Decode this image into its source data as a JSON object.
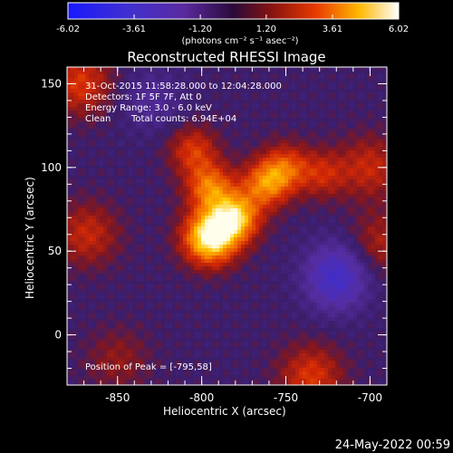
{
  "chart_data": {
    "type": "heatmap",
    "title": "Reconstructed RHESSI Image",
    "xlabel": "Heliocentric X (arcsec)",
    "ylabel": "Heliocentric Y (arcsec)",
    "xlim": [
      -880,
      -690
    ],
    "ylim": [
      -30,
      160
    ],
    "x_ticks": [
      "-850",
      "-800",
      "-750",
      "-700"
    ],
    "x_tick_values": [
      -850,
      -800,
      -750,
      -700
    ],
    "y_ticks": [
      "0",
      "50",
      "100",
      "150"
    ],
    "y_tick_values": [
      0,
      50,
      100,
      150
    ],
    "colorbar": {
      "min": -6.02,
      "max": 6.02,
      "tick_labels": [
        "-6.02",
        "-3.61",
        "-1.20",
        "1.20",
        "3.61",
        "6.02"
      ],
      "unit_label": "(photons cm⁻² s⁻¹ asec⁻²)"
    },
    "annotations": {
      "time_range": "31-Oct-2015 11:58:28.000 to 12:04:28.000",
      "detectors": "Detectors: 1F 5F 7F, Att 0",
      "energy": "Energy Range: 3.0 - 6.0 keV",
      "clean": "Clean",
      "counts": "Total counts: 6.94E+04",
      "peak": "Position of Peak = [-795,58]"
    },
    "sources": [
      {
        "x": -795,
        "y": 58,
        "value": 6.02
      },
      {
        "x": -780,
        "y": 70,
        "value": 4.6
      },
      {
        "x": -795,
        "y": 88,
        "value": 3.5
      },
      {
        "x": -762,
        "y": 90,
        "value": 3.4
      },
      {
        "x": -750,
        "y": 100,
        "value": 2.6
      },
      {
        "x": -805,
        "y": 110,
        "value": 2.4
      },
      {
        "x": -728,
        "y": 96,
        "value": 1.9
      },
      {
        "x": -872,
        "y": 150,
        "value": 2.4
      },
      {
        "x": -868,
        "y": 60,
        "value": 2.0
      },
      {
        "x": -700,
        "y": 100,
        "value": 2.0
      },
      {
        "x": -693,
        "y": 55,
        "value": 1.6
      },
      {
        "x": -735,
        "y": -25,
        "value": 2.4
      },
      {
        "x": -850,
        "y": -15,
        "value": 1.2
      },
      {
        "x": -720,
        "y": 30,
        "value": -1.8
      },
      {
        "x": -720,
        "y": 40,
        "value": -1.5
      },
      {
        "x": -830,
        "y": 140,
        "value": -1.2
      }
    ]
  },
  "footer": {
    "timestamp": "24-May-2022 00:59"
  },
  "colors": {
    "background": "#000000",
    "text": "#ffffff"
  }
}
